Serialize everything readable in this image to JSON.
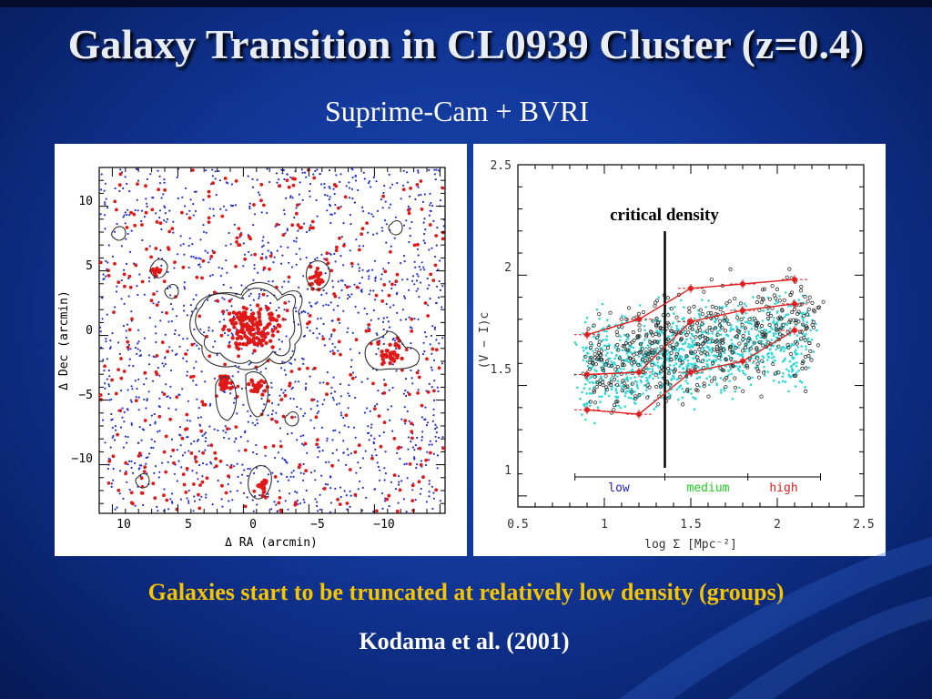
{
  "slide": {
    "title": "Galaxy Transition in CL0939 Cluster (z=0.4)",
    "subtitle": "Suprime-Cam + BVRI",
    "caption": "Galaxies start to be truncated at relatively low density (groups)",
    "citation": "Kodama et al. (2001)"
  },
  "left_figure": {
    "xlabel": "Δ RA (arcmin)",
    "ylabel": "Δ Dec (arcmin)",
    "x_ticks": [
      "10",
      "5",
      "0",
      "−5",
      "−10"
    ],
    "y_ticks": [
      "10",
      "5",
      "0",
      "−5",
      "−10"
    ],
    "colors": {
      "blue_points": "#2230d0",
      "red_points": "#e01818",
      "contour": "#303030"
    }
  },
  "right_figure": {
    "xlabel": "log Σ [Mpc⁻²]",
    "ylabel": "(V − I)c",
    "x_ticks": [
      "0.5",
      "1",
      "1.5",
      "2",
      "2.5"
    ],
    "y_ticks": [
      "1",
      "1.5",
      "2",
      "2.5"
    ],
    "annotation": "critical density",
    "zones": {
      "low": "low",
      "medium": "medium",
      "high": "high"
    },
    "colors": {
      "cyan_points": "#2ed8d8",
      "open_points": "#303030",
      "trend": "#e02020",
      "low": "#2020d0",
      "medium": "#20d020",
      "high": "#e02020"
    }
  },
  "chart_data": {
    "type": "line",
    "x_label": "log Σ [Mpc⁻²]",
    "y_label": "(V − I)c",
    "xlim": [
      0.5,
      2.5
    ],
    "ylim": [
      0.95,
      2.5
    ],
    "critical_density_x": 1.35,
    "series": [
      {
        "x": [
          0.9,
          1.2,
          1.5,
          1.8,
          2.1
        ],
        "y": [
          1.73,
          1.8,
          1.94,
          1.96,
          1.98
        ]
      },
      {
        "x": [
          0.9,
          1.2,
          1.5,
          1.8,
          2.1
        ],
        "y": [
          1.55,
          1.56,
          1.79,
          1.84,
          1.87
        ]
      },
      {
        "x": [
          0.9,
          1.2,
          1.5,
          1.8,
          2.1
        ],
        "y": [
          1.39,
          1.37,
          1.56,
          1.61,
          1.75
        ]
      }
    ],
    "zone_bounds": [
      0.83,
      1.35,
      1.83,
      2.25
    ]
  }
}
